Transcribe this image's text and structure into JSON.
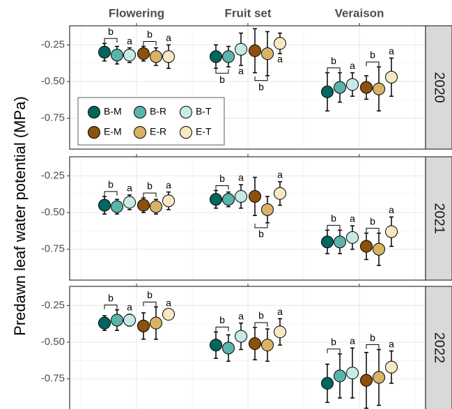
{
  "y_label": "Predawn leaf water potential (MPa)",
  "chart_data": [
    {
      "type": "errorbar",
      "facet": "2020",
      "categories": [
        "Flowering",
        "Fruit set",
        "Veraison"
      ],
      "ylim": [
        -0.96,
        -0.12
      ],
      "yticks": [
        -0.25,
        {
          "value": -0.5,
          "label": "-0.50"
        },
        -0.75
      ],
      "grid": true,
      "legend": "bottom-left",
      "series": [
        {
          "name": "B-M",
          "color": "#01665e",
          "values": [
            -0.3,
            -0.33,
            -0.57
          ],
          "errors": [
            0.06,
            0.08,
            0.13
          ],
          "letters": [
            "b",
            "b",
            "b"
          ]
        },
        {
          "name": "B-R",
          "color": "#5ab4ac",
          "values": [
            -0.32,
            -0.33,
            -0.54
          ],
          "errors": [
            0.06,
            0.07,
            0.1
          ],
          "letters": [
            null,
            null,
            null
          ]
        },
        {
          "name": "B-T",
          "color": "#c7eae5",
          "values": [
            -0.32,
            -0.28,
            -0.52
          ],
          "errors": [
            0.05,
            0.11,
            0.08
          ],
          "letters": [
            "a",
            "a",
            "a"
          ]
        },
        {
          "name": "E-M",
          "color": "#8c510a",
          "values": [
            -0.31,
            -0.29,
            -0.54
          ],
          "errors": [
            0.05,
            0.15,
            0.08
          ],
          "letters": [
            "b",
            "b",
            "b"
          ]
        },
        {
          "name": "E-R",
          "color": "#d8b365",
          "values": [
            -0.33,
            -0.31,
            -0.55
          ],
          "errors": [
            0.06,
            0.15,
            0.15
          ],
          "letters": [
            null,
            null,
            null
          ]
        },
        {
          "name": "E-T",
          "color": "#f6e8c3",
          "values": [
            -0.33,
            -0.24,
            -0.47
          ],
          "errors": [
            0.08,
            0.07,
            0.13
          ],
          "letters": [
            "a",
            "a",
            "a"
          ]
        }
      ]
    },
    {
      "type": "errorbar",
      "facet": "2021",
      "categories": [
        "Flowering",
        "Fruit set",
        "Veraison"
      ],
      "ylim": [
        -0.96,
        -0.12
      ],
      "yticks": [
        -0.25,
        {
          "value": -0.5,
          "label": "-0.50"
        },
        -0.75
      ],
      "grid": true,
      "series": [
        {
          "name": "B-M",
          "color": "#01665e",
          "values": [
            -0.45,
            -0.41,
            -0.7
          ],
          "errors": [
            0.06,
            0.06,
            0.08
          ],
          "letters": [
            "b",
            "b",
            "b"
          ]
        },
        {
          "name": "B-R",
          "color": "#5ab4ac",
          "values": [
            -0.46,
            -0.41,
            -0.7
          ],
          "errors": [
            0.05,
            0.05,
            0.08
          ],
          "letters": [
            null,
            null,
            null
          ]
        },
        {
          "name": "B-T",
          "color": "#c7eae5",
          "values": [
            -0.43,
            -0.39,
            -0.67
          ],
          "errors": [
            0.05,
            0.08,
            0.08
          ],
          "letters": [
            "a",
            "a",
            "a"
          ]
        },
        {
          "name": "E-M",
          "color": "#8c510a",
          "values": [
            -0.45,
            -0.39,
            -0.73
          ],
          "errors": [
            0.05,
            0.13,
            0.09
          ],
          "letters": [
            "b",
            "b",
            "b"
          ]
        },
        {
          "name": "E-R",
          "color": "#d8b365",
          "values": [
            -0.46,
            -0.48,
            -0.75
          ],
          "errors": [
            0.05,
            0.09,
            0.11
          ],
          "letters": [
            null,
            null,
            null
          ]
        },
        {
          "name": "E-T",
          "color": "#f6e8c3",
          "values": [
            -0.42,
            -0.37,
            -0.63
          ],
          "errors": [
            0.06,
            0.08,
            0.1
          ],
          "letters": [
            "a",
            "a",
            "a"
          ]
        }
      ]
    },
    {
      "type": "errorbar",
      "facet": "2022",
      "categories": [
        "Flowering",
        "Fruit set",
        "Veraison"
      ],
      "ylim": [
        -0.96,
        -0.12
      ],
      "yticks": [
        -0.25,
        {
          "value": -0.5,
          "label": "-0.50"
        },
        -0.75
      ],
      "grid": true,
      "series": [
        {
          "name": "B-M",
          "color": "#01665e",
          "values": [
            -0.37,
            -0.52,
            -0.78
          ],
          "errors": [
            0.05,
            0.09,
            0.13
          ],
          "letters": [
            "b",
            "b",
            "b"
          ]
        },
        {
          "name": "B-R",
          "color": "#5ab4ac",
          "values": [
            -0.35,
            -0.54,
            -0.73
          ],
          "errors": [
            0.07,
            0.09,
            0.15
          ],
          "letters": [
            null,
            null,
            null
          ]
        },
        {
          "name": "B-T",
          "color": "#c7eae5",
          "values": [
            -0.35,
            -0.46,
            -0.71
          ],
          "errors": [
            0.04,
            0.09,
            0.17
          ],
          "letters": [
            "a",
            "a",
            "a"
          ]
        },
        {
          "name": "E-M",
          "color": "#8c510a",
          "values": [
            -0.39,
            -0.51,
            -0.76
          ],
          "errors": [
            0.09,
            0.11,
            0.19
          ],
          "letters": [
            "b",
            "b",
            "b"
          ]
        },
        {
          "name": "E-R",
          "color": "#d8b365",
          "values": [
            -0.37,
            -0.52,
            -0.74
          ],
          "errors": [
            0.11,
            0.11,
            0.19
          ],
          "letters": [
            null,
            null,
            null
          ]
        },
        {
          "name": "E-T",
          "color": "#f6e8c3",
          "values": [
            -0.31,
            -0.43,
            -0.67
          ],
          "errors": [
            0.03,
            0.09,
            0.11
          ],
          "letters": [
            "a",
            "a",
            "a"
          ]
        }
      ]
    }
  ]
}
